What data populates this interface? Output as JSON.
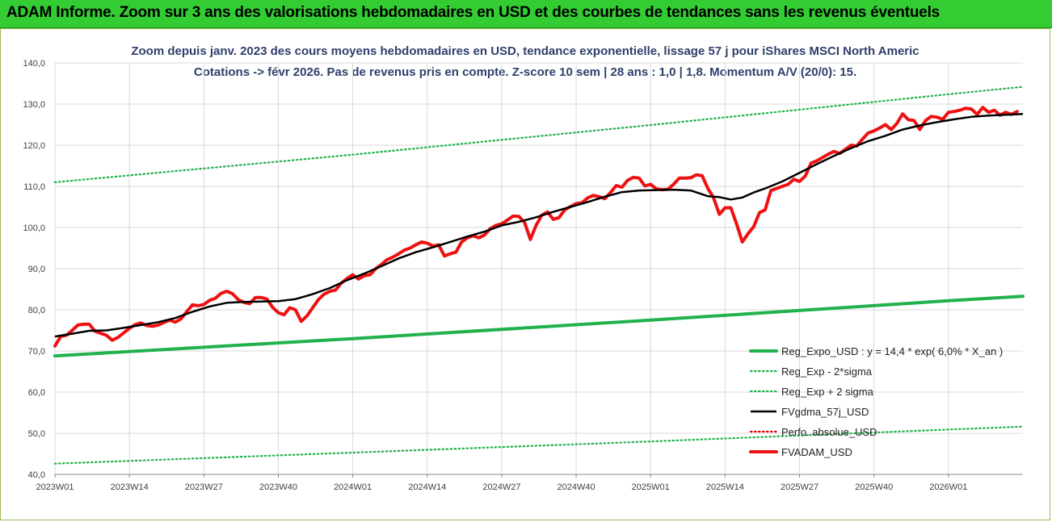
{
  "banner": {
    "title": "ADAM Informe. Zoom sur 3 ans des valorisations hebdomadaires en USD et des courbes de tendances sans les revenus éventuels",
    "color": "#33cc33"
  },
  "chart_data": {
    "type": "line",
    "title_line1": "Zoom depuis janv. 2023 des cours moyens hebdomadaires en USD, tendance exponentielle, lissage 57 j pour iShares MSCI North Americ",
    "title_line2": "Cotations -> févr 2026. Pas de revenus pris en compte. Z-score 10 sem | 28 ans : 1,0 | 1,8. Momentum A/V (20/0): 15.",
    "ylim": [
      40,
      140
    ],
    "y_ticks": [
      "40,0",
      "50,0",
      "60,0",
      "70,0",
      "80,0",
      "90,0",
      "100,0",
      "110,0",
      "120,0",
      "130,0",
      "140,0"
    ],
    "x_ticks": [
      {
        "label": "2023W01",
        "week": 0
      },
      {
        "label": "2023W14",
        "week": 13
      },
      {
        "label": "2023W27",
        "week": 26
      },
      {
        "label": "2023W40",
        "week": 39
      },
      {
        "label": "2024W01",
        "week": 52
      },
      {
        "label": "2024W14",
        "week": 65
      },
      {
        "label": "2024W27",
        "week": 78
      },
      {
        "label": "2024W40",
        "week": 91
      },
      {
        "label": "2025W01",
        "week": 104
      },
      {
        "label": "2025W14",
        "week": 117
      },
      {
        "label": "2025W27",
        "week": 130
      },
      {
        "label": "2025W40",
        "week": 143
      },
      {
        "label": "2026W01",
        "week": 156
      }
    ],
    "x_max_week": 169,
    "grid": "vertical",
    "legend_position": "bottom-right",
    "series": [
      {
        "name": "Reg_Expo_USD : y = 14,4 * exp( 6,0% *  X_an )",
        "color": "#22b14c",
        "style": "solid-thick",
        "points": [
          [
            0,
            68.8
          ],
          [
            52,
            73.0
          ],
          [
            104,
            77.5
          ],
          [
            156,
            82.2
          ],
          [
            169,
            83.3
          ]
        ]
      },
      {
        "name": "Reg_Exp - 2*sigma",
        "color": "#22b14c",
        "style": "dotted",
        "points": [
          [
            0,
            42.6
          ],
          [
            52,
            45.3
          ],
          [
            104,
            48.0
          ],
          [
            156,
            50.9
          ],
          [
            169,
            51.6
          ]
        ]
      },
      {
        "name": "Reg_Exp + 2 sigma",
        "color": "#22b14c",
        "style": "dotted",
        "points": [
          [
            0,
            111.0
          ],
          [
            52,
            117.7
          ],
          [
            104,
            124.9
          ],
          [
            156,
            132.4
          ],
          [
            169,
            134.2
          ]
        ]
      },
      {
        "name": "FVgdma_57j_USD",
        "color": "#000000",
        "style": "solid",
        "points": [
          [
            0,
            73.5
          ],
          [
            3,
            74.2
          ],
          [
            6,
            74.9
          ],
          [
            9,
            75.0
          ],
          [
            12,
            75.6
          ],
          [
            15,
            76.3
          ],
          [
            18,
            77.0
          ],
          [
            21,
            78.0
          ],
          [
            24,
            79.5
          ],
          [
            27,
            80.8
          ],
          [
            30,
            81.7
          ],
          [
            33,
            81.9
          ],
          [
            36,
            82.0
          ],
          [
            39,
            82.1
          ],
          [
            42,
            82.6
          ],
          [
            45,
            83.8
          ],
          [
            48,
            85.3
          ],
          [
            51,
            87.2
          ],
          [
            54,
            88.8
          ],
          [
            57,
            90.6
          ],
          [
            60,
            92.5
          ],
          [
            63,
            94.0
          ],
          [
            66,
            95.2
          ],
          [
            69,
            96.5
          ],
          [
            72,
            97.8
          ],
          [
            75,
            99.0
          ],
          [
            78,
            100.5
          ],
          [
            81,
            101.4
          ],
          [
            84,
            102.5
          ],
          [
            87,
            103.8
          ],
          [
            90,
            105.0
          ],
          [
            93,
            106.2
          ],
          [
            96,
            107.5
          ],
          [
            99,
            108.6
          ],
          [
            102,
            109.0
          ],
          [
            105,
            109.1
          ],
          [
            108,
            109.2
          ],
          [
            111,
            109.0
          ],
          [
            114,
            107.6
          ],
          [
            116,
            107.4
          ],
          [
            118,
            106.8
          ],
          [
            120,
            107.3
          ],
          [
            122,
            108.5
          ],
          [
            124,
            109.5
          ],
          [
            127,
            111.2
          ],
          [
            130,
            113.3
          ],
          [
            133,
            115.4
          ],
          [
            136,
            117.4
          ],
          [
            139,
            119.3
          ],
          [
            142,
            121.0
          ],
          [
            145,
            122.3
          ],
          [
            148,
            123.8
          ],
          [
            151,
            124.8
          ],
          [
            154,
            125.6
          ],
          [
            157,
            126.3
          ],
          [
            160,
            126.9
          ],
          [
            163,
            127.2
          ],
          [
            166,
            127.4
          ],
          [
            169,
            127.6
          ]
        ]
      },
      {
        "name": "Perfo. absolue_USD",
        "color": "#e00000",
        "style": "dotted",
        "points": []
      },
      {
        "name": "FVADAM_USD",
        "color": "#ee1111",
        "style": "solid-thick",
        "points": [
          [
            0,
            71.2
          ],
          [
            1,
            73.5
          ],
          [
            2,
            73.8
          ],
          [
            3,
            75.0
          ],
          [
            4,
            76.3
          ],
          [
            5,
            76.5
          ],
          [
            6,
            76.5
          ],
          [
            7,
            74.8
          ],
          [
            8,
            74.3
          ],
          [
            9,
            73.8
          ],
          [
            10,
            72.6
          ],
          [
            11,
            73.3
          ],
          [
            12,
            74.4
          ],
          [
            13,
            75.5
          ],
          [
            14,
            76.4
          ],
          [
            15,
            76.8
          ],
          [
            16,
            76.2
          ],
          [
            17,
            76.0
          ],
          [
            18,
            76.3
          ],
          [
            19,
            76.9
          ],
          [
            20,
            77.5
          ],
          [
            21,
            77.0
          ],
          [
            22,
            77.8
          ],
          [
            23,
            79.5
          ],
          [
            24,
            81.2
          ],
          [
            25,
            81.0
          ],
          [
            26,
            81.3
          ],
          [
            27,
            82.3
          ],
          [
            28,
            82.8
          ],
          [
            29,
            84.0
          ],
          [
            30,
            84.5
          ],
          [
            31,
            83.9
          ],
          [
            32,
            82.5
          ],
          [
            33,
            81.8
          ],
          [
            34,
            81.5
          ],
          [
            35,
            83.0
          ],
          [
            36,
            83.0
          ],
          [
            37,
            82.6
          ],
          [
            38,
            80.6
          ],
          [
            39,
            79.3
          ],
          [
            40,
            78.8
          ],
          [
            41,
            80.5
          ],
          [
            42,
            80.0
          ],
          [
            43,
            77.2
          ],
          [
            44,
            78.5
          ],
          [
            45,
            80.5
          ],
          [
            46,
            82.5
          ],
          [
            47,
            83.8
          ],
          [
            48,
            84.5
          ],
          [
            49,
            84.8
          ],
          [
            50,
            86.5
          ],
          [
            51,
            87.6
          ],
          [
            52,
            88.5
          ],
          [
            53,
            87.5
          ],
          [
            54,
            88.3
          ],
          [
            55,
            88.5
          ],
          [
            56,
            90.0
          ],
          [
            57,
            91.0
          ],
          [
            58,
            92.2
          ],
          [
            59,
            92.8
          ],
          [
            60,
            93.6
          ],
          [
            61,
            94.5
          ],
          [
            62,
            95.0
          ],
          [
            63,
            95.8
          ],
          [
            64,
            96.5
          ],
          [
            65,
            96.2
          ],
          [
            66,
            95.5
          ],
          [
            67,
            95.8
          ],
          [
            68,
            93.1
          ],
          [
            69,
            93.6
          ],
          [
            70,
            94.0
          ],
          [
            71,
            96.5
          ],
          [
            72,
            97.5
          ],
          [
            73,
            98.0
          ],
          [
            74,
            97.5
          ],
          [
            75,
            98.2
          ],
          [
            76,
            99.7
          ],
          [
            77,
            100.5
          ],
          [
            78,
            100.9
          ],
          [
            79,
            101.8
          ],
          [
            80,
            102.8
          ],
          [
            81,
            102.7
          ],
          [
            82,
            101.2
          ],
          [
            83,
            97.1
          ],
          [
            84,
            100.5
          ],
          [
            85,
            103.0
          ],
          [
            86,
            103.8
          ],
          [
            87,
            102.0
          ],
          [
            88,
            102.4
          ],
          [
            89,
            104.3
          ],
          [
            90,
            105.1
          ],
          [
            91,
            105.8
          ],
          [
            92,
            106.0
          ],
          [
            93,
            107.2
          ],
          [
            94,
            107.8
          ],
          [
            95,
            107.5
          ],
          [
            96,
            107.0
          ],
          [
            97,
            108.5
          ],
          [
            98,
            110.2
          ],
          [
            99,
            109.8
          ],
          [
            100,
            111.5
          ],
          [
            101,
            112.2
          ],
          [
            102,
            112.0
          ],
          [
            103,
            110.1
          ],
          [
            104,
            110.5
          ],
          [
            105,
            109.4
          ],
          [
            106,
            109.2
          ],
          [
            107,
            109.3
          ],
          [
            108,
            110.5
          ],
          [
            109,
            112.0
          ],
          [
            110,
            112.0
          ],
          [
            111,
            112.1
          ],
          [
            112,
            112.8
          ],
          [
            113,
            112.6
          ],
          [
            114,
            109.5
          ],
          [
            115,
            107.2
          ],
          [
            116,
            103.2
          ],
          [
            117,
            104.8
          ],
          [
            118,
            104.8
          ],
          [
            119,
            100.9
          ],
          [
            120,
            96.5
          ],
          [
            121,
            98.5
          ],
          [
            122,
            100.2
          ],
          [
            123,
            103.6
          ],
          [
            124,
            104.3
          ],
          [
            125,
            109.0
          ],
          [
            126,
            109.5
          ],
          [
            127,
            110.0
          ],
          [
            128,
            110.5
          ],
          [
            129,
            111.7
          ],
          [
            130,
            111.2
          ],
          [
            131,
            112.5
          ],
          [
            132,
            115.6
          ],
          [
            133,
            116.2
          ],
          [
            134,
            117.0
          ],
          [
            135,
            117.8
          ],
          [
            136,
            118.5
          ],
          [
            137,
            118.0
          ],
          [
            138,
            119.0
          ],
          [
            139,
            120.0
          ],
          [
            140,
            119.8
          ],
          [
            141,
            121.5
          ],
          [
            142,
            123.0
          ],
          [
            143,
            123.5
          ],
          [
            144,
            124.2
          ],
          [
            145,
            125.0
          ],
          [
            146,
            123.8
          ],
          [
            147,
            125.3
          ],
          [
            148,
            127.6
          ],
          [
            149,
            126.2
          ],
          [
            150,
            126.0
          ],
          [
            151,
            123.8
          ],
          [
            152,
            126.0
          ],
          [
            153,
            127.0
          ],
          [
            154,
            126.8
          ],
          [
            155,
            126.3
          ],
          [
            156,
            128.0
          ],
          [
            157,
            128.2
          ],
          [
            158,
            128.5
          ],
          [
            159,
            129.0
          ],
          [
            160,
            128.8
          ],
          [
            161,
            127.5
          ],
          [
            162,
            129.2
          ],
          [
            163,
            128.0
          ],
          [
            164,
            128.5
          ],
          [
            165,
            127.3
          ],
          [
            166,
            128.0
          ],
          [
            167,
            127.5
          ],
          [
            168,
            128.2
          ]
        ]
      }
    ]
  }
}
